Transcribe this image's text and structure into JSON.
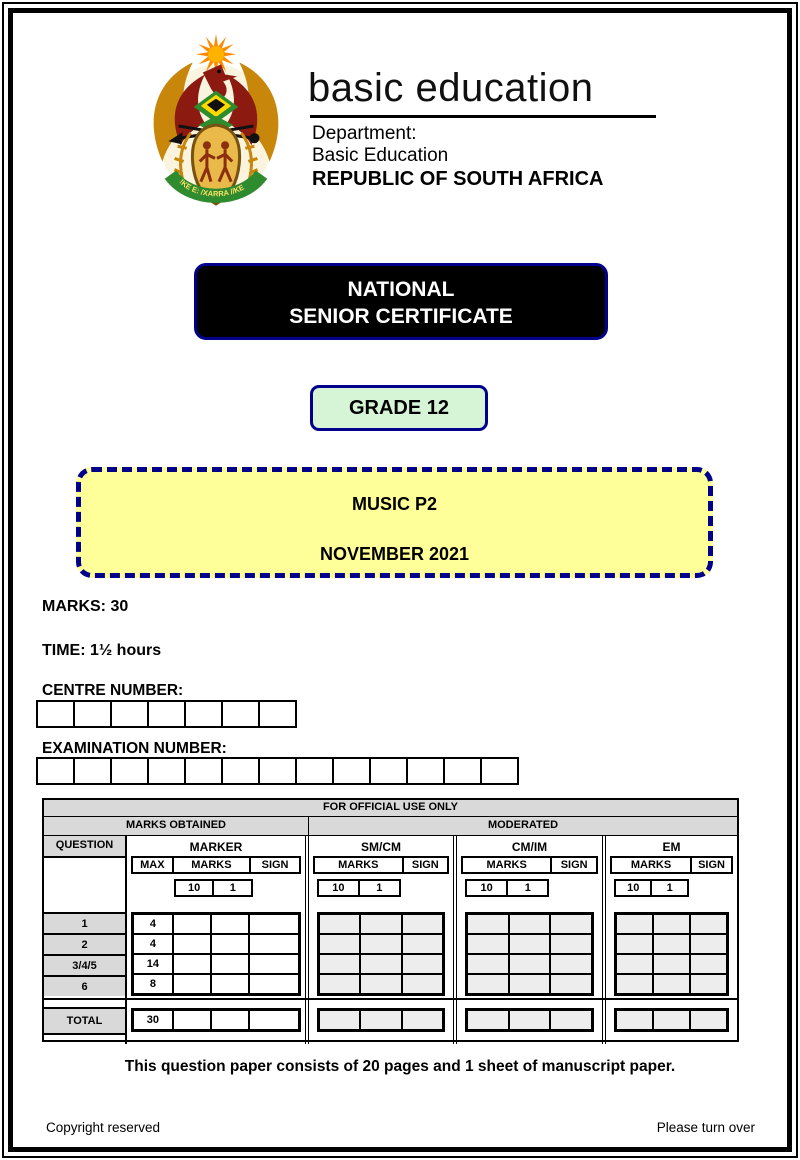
{
  "header": {
    "brand": "basic education",
    "dept_line1": "Department:",
    "dept_line2": "Basic Education",
    "country": "REPUBLIC OF SOUTH AFRICA",
    "motto": "!KE E: /XARRA //KE"
  },
  "banners": {
    "national_line1": "NATIONAL",
    "national_line2": "SENIOR CERTIFICATE",
    "grade": "GRADE 12",
    "subject": "MUSIC P2",
    "session": "NOVEMBER 2021"
  },
  "details": {
    "marks": "MARKS: 30",
    "time": "TIME: 1½ hours",
    "centre_label": "CENTRE NUMBER:",
    "centre_cells": 7,
    "exam_label": "EXAMINATION NUMBER:",
    "exam_cells": 13
  },
  "official_table": {
    "title": "FOR OFFICIAL USE ONLY",
    "col_marks_obtained": "MARKS OBTAINED",
    "col_moderated": "MODERATED",
    "question_header": "QUESTION",
    "groups": [
      {
        "name": "MARKER",
        "headers": [
          "MAX",
          "MARKS",
          "SIGN"
        ],
        "tens": [
          "10",
          "1"
        ]
      },
      {
        "name": "SM/CM",
        "headers": [
          "MARKS",
          "SIGN"
        ],
        "tens": [
          "10",
          "1"
        ]
      },
      {
        "name": "CM/IM",
        "headers": [
          "MARKS",
          "SIGN"
        ],
        "tens": [
          "10",
          "1"
        ]
      },
      {
        "name": "EM",
        "headers": [
          "MARKS",
          "SIGN"
        ],
        "tens": [
          "10",
          "1"
        ]
      }
    ],
    "rows": [
      {
        "question": "1",
        "max": "4"
      },
      {
        "question": "2",
        "max": "4"
      },
      {
        "question": "3/4/5",
        "max": "14"
      },
      {
        "question": "6",
        "max": "8"
      }
    ],
    "total_label": "TOTAL",
    "total_max": "30"
  },
  "footer": {
    "note": "This question paper consists of 20 pages and 1 sheet of manuscript paper.",
    "copyright": "Copyright reserved",
    "turn": "Please turn over"
  },
  "colors": {
    "navy_border": "#00008b",
    "subject_box_yellow": "#ffff99",
    "grade_box_green": "#d6f5d6",
    "table_header_gray": "#d9d9d9",
    "moderated_cell_gray": "#ededed"
  }
}
